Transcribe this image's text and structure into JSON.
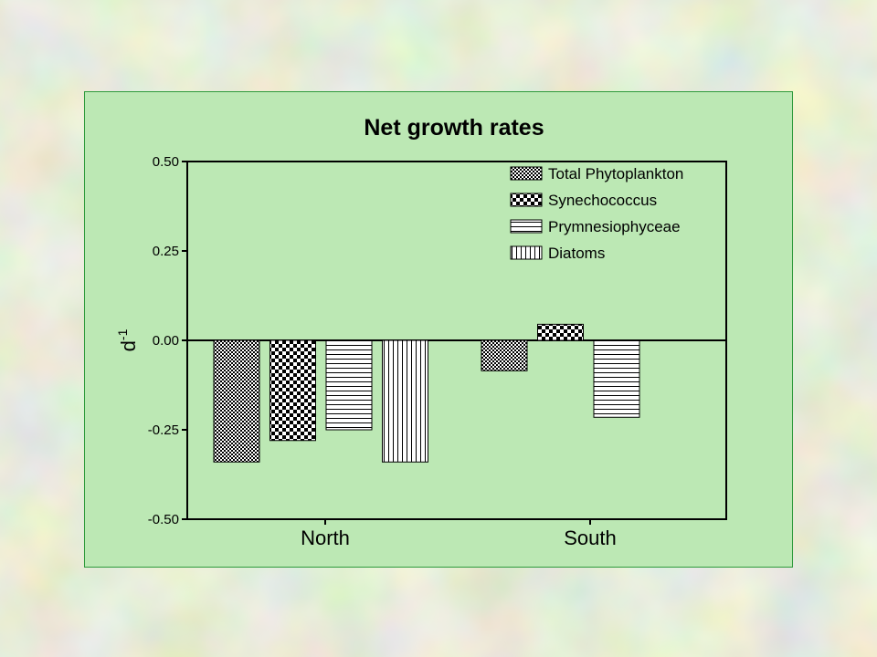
{
  "chart_data": {
    "type": "bar",
    "title": "Net growth rates",
    "xlabel": "",
    "ylabel": "d",
    "ylabel_superscript": "-1",
    "categories": [
      "North",
      "South"
    ],
    "ylim": [
      -0.5,
      0.5
    ],
    "yticks": [
      "0.50",
      "0.25",
      "0.00",
      "-0.25",
      "-0.50"
    ],
    "ytick_values": [
      0.5,
      0.25,
      0.0,
      -0.25,
      -0.5
    ],
    "grid": false,
    "legend_position": "top-right",
    "series": [
      {
        "name": "Total Phytoplankton",
        "pattern": "checker-fine",
        "values": [
          -0.34,
          -0.085
        ]
      },
      {
        "name": "Synechococcus",
        "pattern": "checker-coarse",
        "values": [
          -0.28,
          0.045
        ]
      },
      {
        "name": "Prymnesiophyceae",
        "pattern": "horizontal-lines",
        "values": [
          -0.25,
          -0.215
        ]
      },
      {
        "name": "Diatoms",
        "pattern": "vertical-lines",
        "values": [
          -0.34,
          null
        ]
      }
    ]
  },
  "colors": {
    "panel_background": "#bce8b4",
    "panel_border": "#2e9a3c",
    "bar_fill": "#ffffff",
    "ink": "#000000"
  }
}
